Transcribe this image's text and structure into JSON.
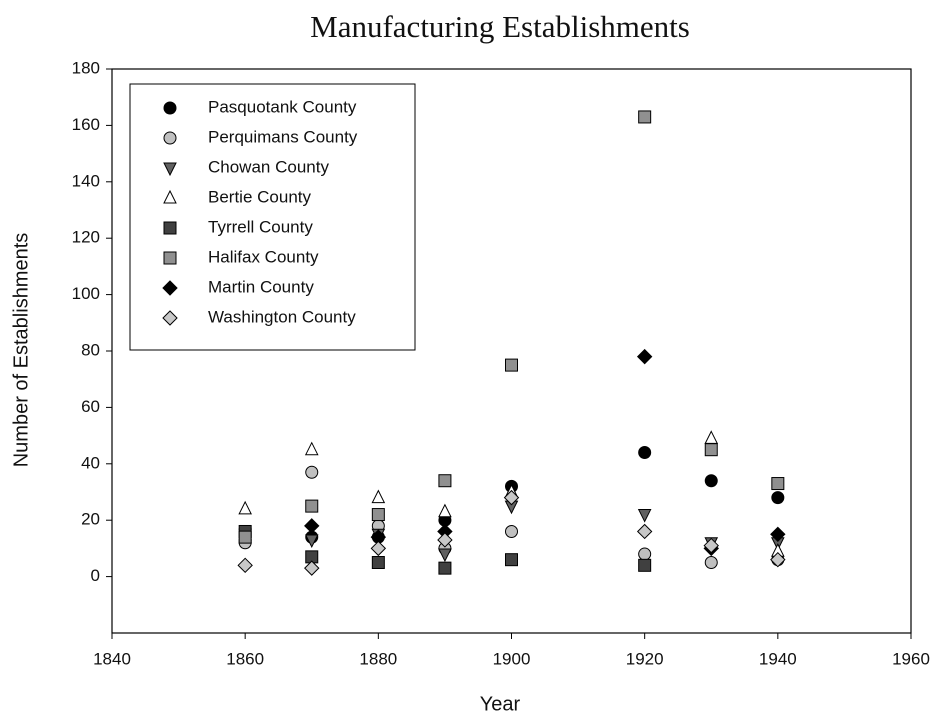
{
  "chart_data": {
    "type": "scatter",
    "title": "Manufacturing Establishments",
    "x_label": "Year",
    "y_label": "Number of Establishments",
    "x": [
      1860,
      1870,
      1880,
      1890,
      1900,
      1920,
      1930,
      1940
    ],
    "series": [
      {
        "name": "Pasquotank County",
        "marker": "circle",
        "color": "#000000",
        "values": [
          13,
          14,
          14,
          20,
          32,
          44,
          34,
          28
        ]
      },
      {
        "name": "Perquimans County",
        "marker": "circle",
        "color": "#c0c0c0",
        "values": [
          12,
          37,
          18,
          10,
          16,
          8,
          5,
          6
        ]
      },
      {
        "name": "Chowan County",
        "marker": "triangle-down",
        "color": "#606060",
        "values": [
          15,
          13,
          15,
          8,
          25,
          22,
          12,
          12
        ]
      },
      {
        "name": "Bertie County",
        "marker": "triangle-up",
        "color": "#ffffff",
        "values": [
          24,
          45,
          28,
          23,
          30,
          null,
          49,
          9
        ]
      },
      {
        "name": "Tyrrell County",
        "marker": "square",
        "color": "#404040",
        "values": [
          16,
          7,
          5,
          3,
          6,
          4,
          null,
          null
        ]
      },
      {
        "name": "Halifax County",
        "marker": "square",
        "color": "#909090",
        "values": [
          14,
          25,
          22,
          34,
          75,
          163,
          45,
          33
        ]
      },
      {
        "name": "Martin County",
        "marker": "diamond",
        "color": "#000000",
        "values": [
          null,
          18,
          14,
          16,
          null,
          78,
          10,
          15
        ]
      },
      {
        "name": "Washington County",
        "marker": "diamond",
        "color": "#c8c8c8",
        "values": [
          4,
          3,
          10,
          13,
          28,
          16,
          11,
          6
        ]
      }
    ],
    "xlim": [
      1840,
      1960
    ],
    "xticks": [
      1840,
      1860,
      1880,
      1900,
      1920,
      1940,
      1960
    ],
    "ylim": [
      -20,
      180
    ],
    "yticks": [
      0,
      20,
      40,
      60,
      80,
      100,
      120,
      140,
      160,
      180
    ],
    "grid": false,
    "legend": "upper left"
  }
}
